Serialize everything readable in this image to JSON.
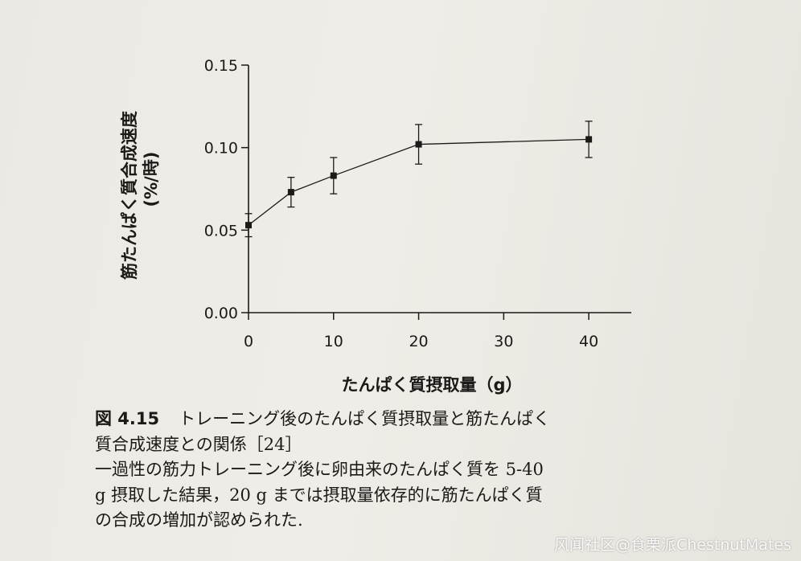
{
  "chart_data": {
    "type": "line",
    "xlabel": "たんぱく質摂取量（g）",
    "ylabel": "筋たんぱく質合成速度",
    "ylabel_unit": "(%/時)",
    "x": [
      0,
      5,
      10,
      20,
      40
    ],
    "y": [
      0.053,
      0.073,
      0.083,
      0.102,
      0.105
    ],
    "error": [
      0.007,
      0.009,
      0.011,
      0.012,
      0.011
    ],
    "xlim": [
      0,
      45
    ],
    "ylim": [
      0,
      0.15
    ],
    "x_ticks": [
      0,
      10,
      20,
      30,
      40
    ],
    "x_tick_labels": [
      "0",
      "10",
      "20",
      "30",
      "40"
    ],
    "y_ticks": [
      0,
      0.05,
      0.1,
      0.15
    ],
    "y_tick_labels": [
      "0.00",
      "0.05",
      "0.10",
      "0.15"
    ],
    "grid": false,
    "marker": "square",
    "error_bars": true,
    "color": "#1c1a18"
  },
  "caption": {
    "figure_label": "図 4.15",
    "lines": [
      "トレーニング後のたんぱく質摂取量と筋たんぱく",
      "質合成速度との関係［24］",
      "一過性の筋力トレーニング後に卵由来のたんぱく質を 5-40",
      "g 摂取した結果，20 g までは摂取量依存的に筋たんぱく質",
      "の合成の増加が認められた."
    ]
  },
  "watermark": "风闻社区@食栗派ChestnutMates"
}
